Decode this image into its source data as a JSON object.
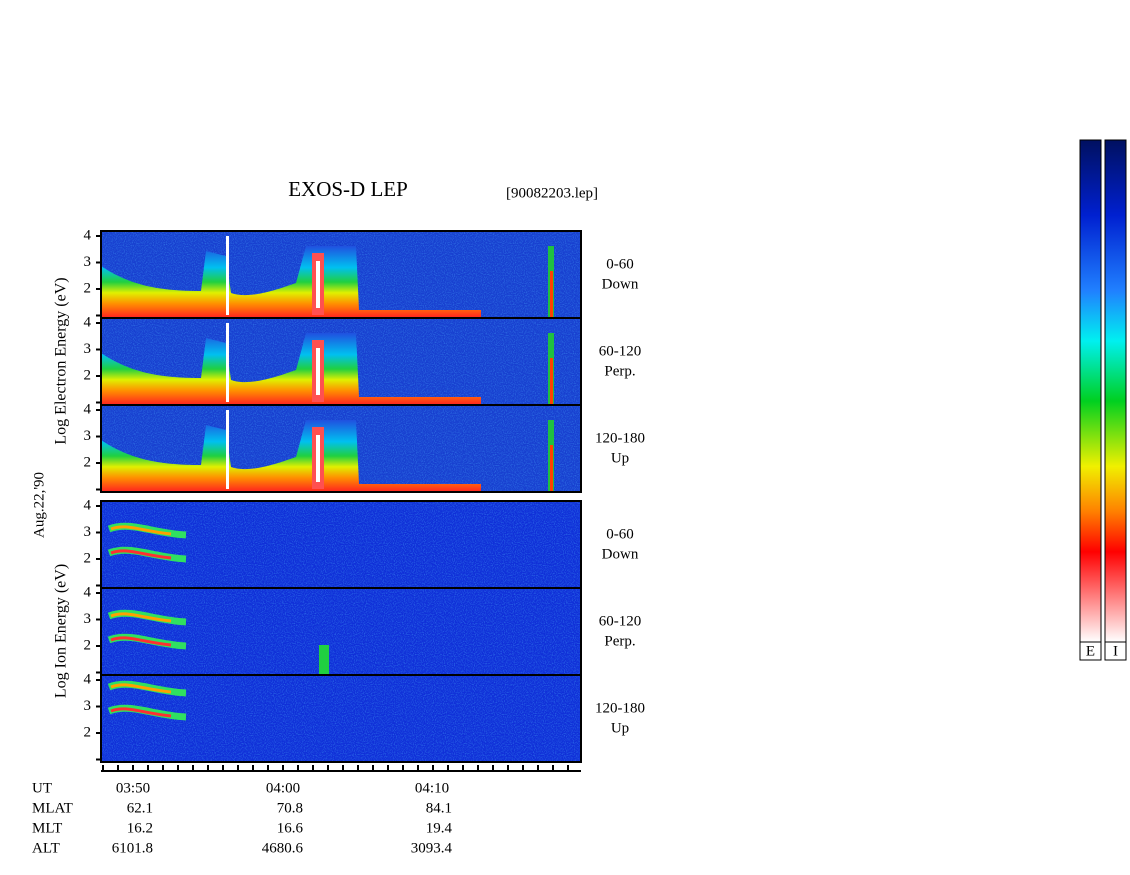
{
  "header": {
    "title": "EXOS-D LEP",
    "file": "[90082203.lep]"
  },
  "date": "Aug.22,'90",
  "groups": [
    {
      "axis_label": "Log Electron Energy (eV)",
      "panels": [
        {
          "angle": "0-60",
          "direction": "Down",
          "yticks": [
            "4",
            "3",
            "2"
          ]
        },
        {
          "angle": "60-120",
          "direction": "Perp.",
          "yticks": [
            "4",
            "3",
            "2"
          ]
        },
        {
          "angle": "120-180",
          "direction": "Up",
          "yticks": [
            "4",
            "3",
            "2"
          ]
        }
      ]
    },
    {
      "axis_label": "Log Ion Energy (eV)",
      "panels": [
        {
          "angle": "0-60",
          "direction": "Down",
          "yticks": [
            "4",
            "3",
            "2"
          ]
        },
        {
          "angle": "60-120",
          "direction": "Perp.",
          "yticks": [
            "4",
            "3",
            "2"
          ]
        },
        {
          "angle": "120-180",
          "direction": "Up",
          "yticks": [
            "4",
            "3",
            "2"
          ]
        }
      ]
    }
  ],
  "footer": {
    "rows": [
      {
        "label": "UT",
        "values": [
          "03:50",
          "04:00",
          "04:10"
        ]
      },
      {
        "label": "MLAT",
        "values": [
          "62.1",
          "70.8",
          "84.1"
        ]
      },
      {
        "label": "MLT",
        "values": [
          "16.2",
          "16.6",
          "19.4"
        ]
      },
      {
        "label": "ALT",
        "values": [
          "6101.8",
          "4680.6",
          "3093.4"
        ]
      }
    ]
  },
  "colorbar": {
    "labels": [
      "E",
      "I"
    ]
  }
}
